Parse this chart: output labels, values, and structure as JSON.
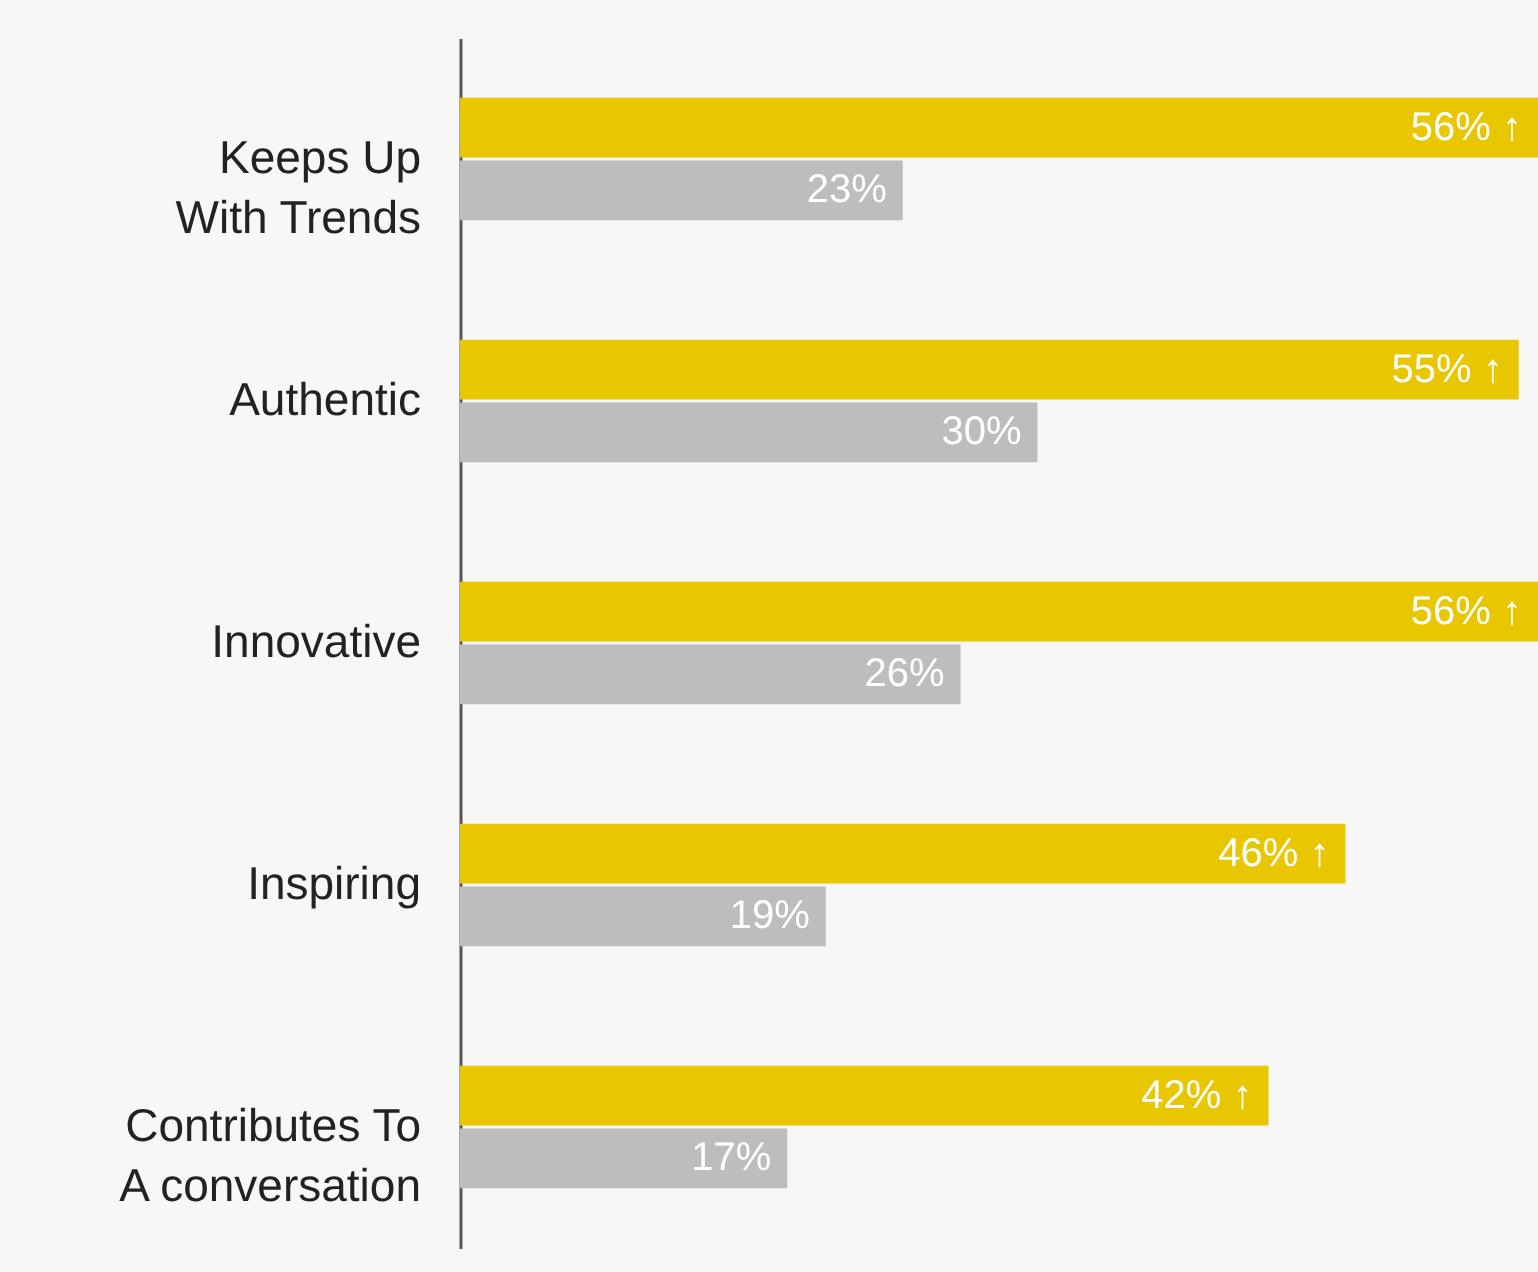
{
  "chart_data": {
    "type": "bar",
    "orientation": "horizontal",
    "categories": [
      "Keeps Up\nWith Trends",
      "Authentic",
      "Innovative",
      "Inspiring",
      "Contributes To\nA conversation"
    ],
    "xlim": [
      0,
      56
    ],
    "series": [
      {
        "color": "#e8c600",
        "values": [
          56,
          55,
          56,
          46,
          42
        ],
        "value_labels": [
          "56% ↑",
          "55% ↑",
          "56% ↑",
          "46% ↑",
          "42% ↑"
        ]
      },
      {
        "color": "#bdbdbd",
        "values": [
          23,
          30,
          26,
          19,
          17
        ],
        "value_labels": [
          "23%",
          "30%",
          "26%",
          "19%",
          "17%"
        ]
      }
    ]
  }
}
